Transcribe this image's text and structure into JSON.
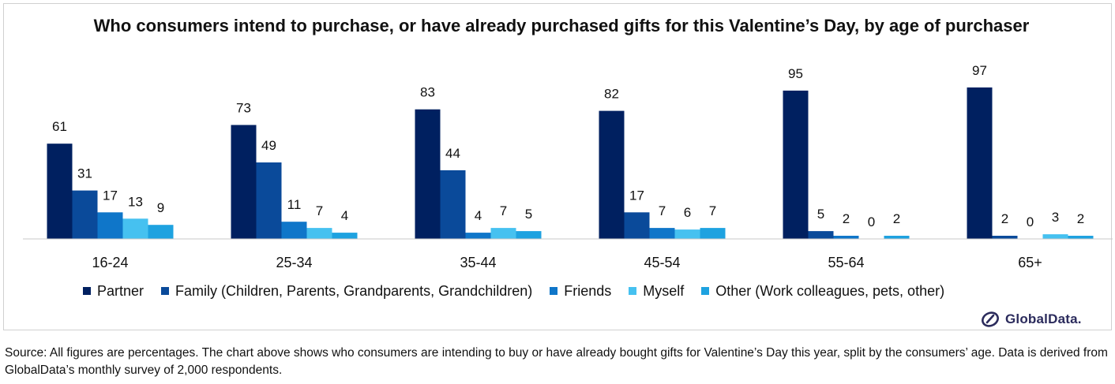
{
  "chart_data": {
    "type": "bar",
    "title": "Who consumers intend to purchase, or have already purchased gifts for this Valentine’s Day, by age of purchaser",
    "categories": [
      "16-24",
      "25-34",
      "35-44",
      "45-54",
      "55-64",
      "65+"
    ],
    "series": [
      {
        "name": "Partner",
        "color": "#002060",
        "values": [
          61,
          73,
          83,
          82,
          95,
          97
        ]
      },
      {
        "name": "Family (Children, Parents, Grandparents, Grandchildren)",
        "color": "#0a4a9a",
        "values": [
          31,
          49,
          44,
          17,
          5,
          2
        ]
      },
      {
        "name": "Friends",
        "color": "#0f76c9",
        "values": [
          17,
          11,
          4,
          7,
          2,
          0
        ]
      },
      {
        "name": "Myself",
        "color": "#46c1f0",
        "values": [
          13,
          7,
          7,
          6,
          0,
          3
        ]
      },
      {
        "name": "Other (Work colleagues, pets, other)",
        "color": "#1ea2e0",
        "values": [
          9,
          4,
          5,
          7,
          2,
          2
        ]
      }
    ],
    "xlabel": "",
    "ylabel": "",
    "ylim": [
      0,
      100
    ],
    "grid": false,
    "legend_position": "bottom",
    "data_labels": true
  },
  "source_note": "Source: All figures are percentages. The chart above shows who consumers are intending to buy or have already bought gifts for Valentine’s Day this year, split by the consumers’ age. Data is derived from GlobalData’s monthly survey of 2,000 respondents.",
  "brand": {
    "name": "GlobalData.",
    "icon": "globaldata-logo-icon"
  }
}
